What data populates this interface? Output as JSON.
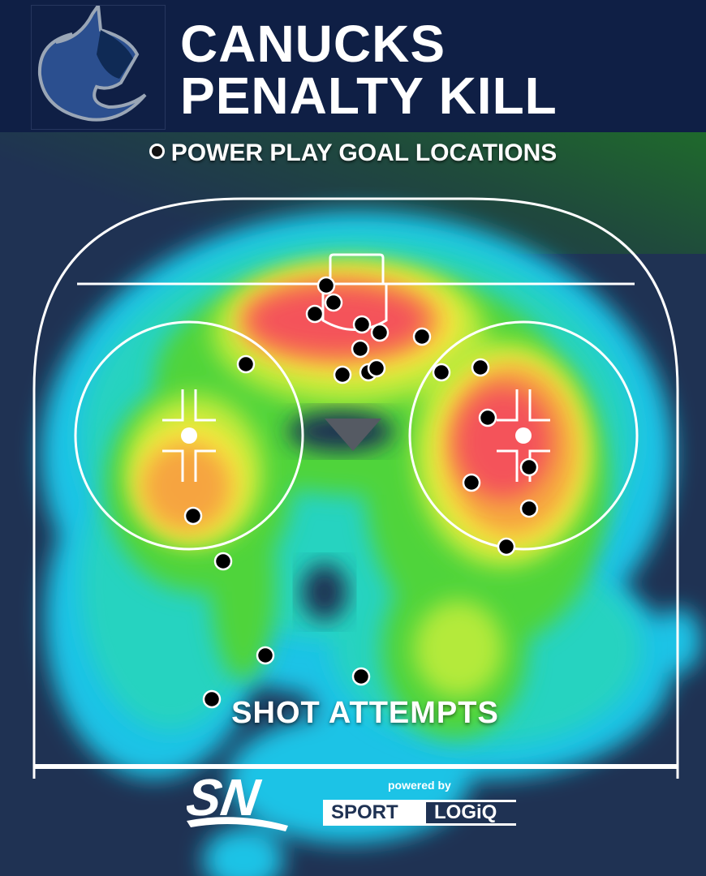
{
  "header": {
    "title_line1": "CANUCKS",
    "title_line2": "PENALTY KILL",
    "logo": "Vancouver Canucks orca logo"
  },
  "legend": {
    "goals_label": "POWER PLAY GOAL LOCATIONS",
    "heatmap_label": "SHOT ATTEMPTS"
  },
  "footer": {
    "broadcaster_logo": "SN",
    "powered_by": "powered by",
    "partner_part1": "SPORT",
    "partner_part2": "LOGiQ"
  },
  "colors": {
    "header_bg": "#0f1f45",
    "page_bg": "#1f3253",
    "heat_low": "#1ec3e6",
    "heat_mid": "#4fd43a",
    "heat_high_yellow": "#f5ea3e",
    "heat_orange": "#f6a440",
    "heat_max": "#f4535a"
  }
}
